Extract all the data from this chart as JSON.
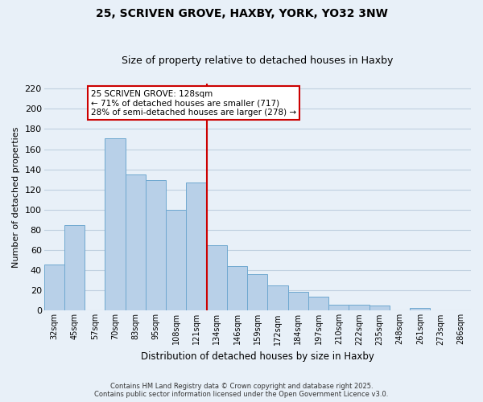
{
  "title": "25, SCRIVEN GROVE, HAXBY, YORK, YO32 3NW",
  "subtitle": "Size of property relative to detached houses in Haxby",
  "xlabel": "Distribution of detached houses by size in Haxby",
  "ylabel": "Number of detached properties",
  "bar_labels": [
    "32sqm",
    "45sqm",
    "57sqm",
    "70sqm",
    "83sqm",
    "95sqm",
    "108sqm",
    "121sqm",
    "134sqm",
    "146sqm",
    "159sqm",
    "172sqm",
    "184sqm",
    "197sqm",
    "210sqm",
    "222sqm",
    "235sqm",
    "248sqm",
    "261sqm",
    "273sqm",
    "286sqm"
  ],
  "bar_values": [
    46,
    85,
    0,
    171,
    135,
    129,
    100,
    127,
    65,
    44,
    36,
    25,
    19,
    14,
    6,
    6,
    5,
    0,
    3,
    0,
    0
  ],
  "bar_color": "#b8d0e8",
  "bar_edge_color": "#6fa8d0",
  "vline_color": "#cc0000",
  "annotation_title": "25 SCRIVEN GROVE: 128sqm",
  "annotation_line1": "← 71% of detached houses are smaller (717)",
  "annotation_line2": "28% of semi-detached houses are larger (278) →",
  "annotation_box_color": "#ffffff",
  "annotation_box_edge": "#cc0000",
  "ylim": [
    0,
    225
  ],
  "yticks": [
    0,
    20,
    40,
    60,
    80,
    100,
    120,
    140,
    160,
    180,
    200,
    220
  ],
  "grid_color": "#c0d0e0",
  "bg_color": "#e8f0f8",
  "footer1": "Contains HM Land Registry data © Crown copyright and database right 2025.",
  "footer2": "Contains public sector information licensed under the Open Government Licence v3.0."
}
